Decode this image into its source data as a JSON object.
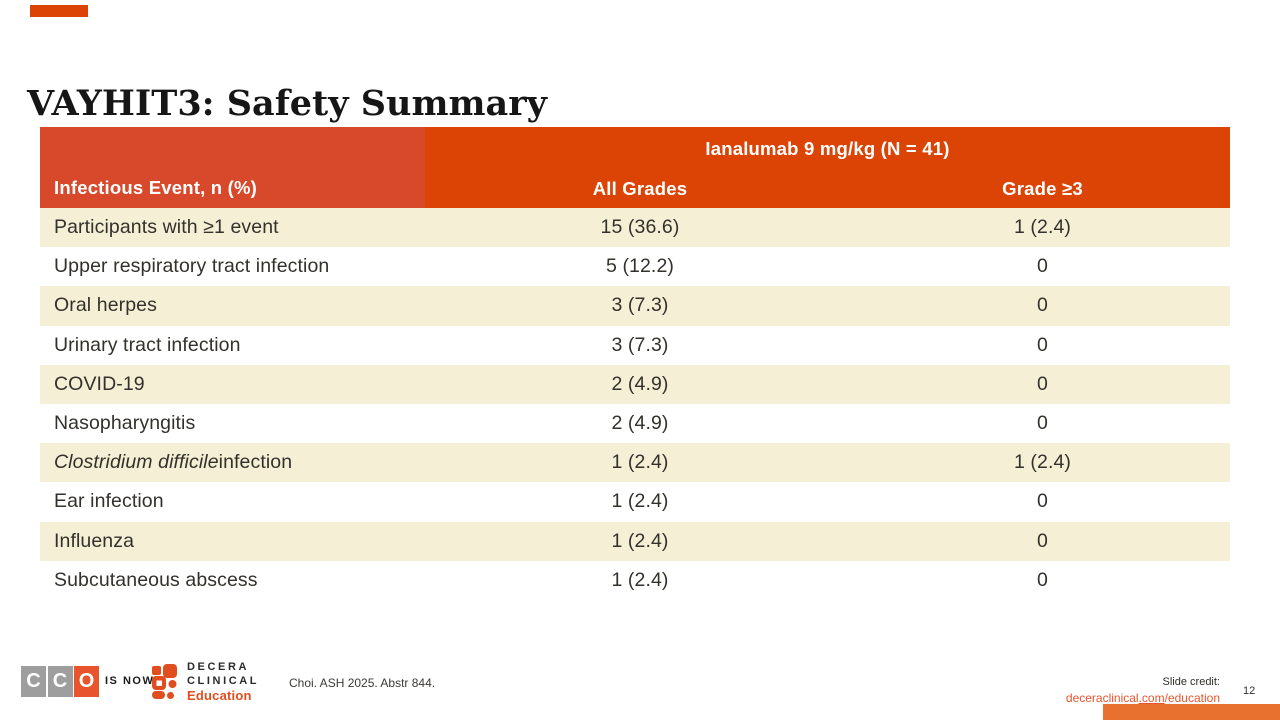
{
  "slide": {
    "title": "VAYHIT3: Safety Summary",
    "page_number": "12"
  },
  "table": {
    "row_header": "Infectious Event, n (%)",
    "span_header": "Ianalumab 9 mg/kg (N = 41)",
    "sub_headers": {
      "all_grades": "All Grades",
      "grade_ge3": "Grade ≥3"
    },
    "rows": [
      {
        "event": [
          {
            "t": "Participants with ≥1 event",
            "i": false
          }
        ],
        "all_grades": "15 (36.6)",
        "grade_ge3": "1 (2.4)"
      },
      {
        "event": [
          {
            "t": "Upper respiratory tract infection",
            "i": false
          }
        ],
        "all_grades": "5 (12.2)",
        "grade_ge3": "0"
      },
      {
        "event": [
          {
            "t": "Oral herpes",
            "i": false
          }
        ],
        "all_grades": "3 (7.3)",
        "grade_ge3": "0"
      },
      {
        "event": [
          {
            "t": "Urinary tract infection",
            "i": false
          }
        ],
        "all_grades": "3 (7.3)",
        "grade_ge3": "0"
      },
      {
        "event": [
          {
            "t": "COVID-19",
            "i": false
          }
        ],
        "all_grades": "2 (4.9)",
        "grade_ge3": "0"
      },
      {
        "event": [
          {
            "t": "Nasopharyngitis",
            "i": false
          }
        ],
        "all_grades": "2 (4.9)",
        "grade_ge3": "0"
      },
      {
        "event": [
          {
            "t": "Clostridium difficile",
            "i": true
          },
          {
            "t": " infection",
            "i": false
          }
        ],
        "all_grades": "1 (2.4)",
        "grade_ge3": "1 (2.4)"
      },
      {
        "event": [
          {
            "t": "Ear infection",
            "i": false
          }
        ],
        "all_grades": "1 (2.4)",
        "grade_ge3": "0"
      },
      {
        "event": [
          {
            "t": "Influenza",
            "i": false
          }
        ],
        "all_grades": "1 (2.4)",
        "grade_ge3": "0"
      },
      {
        "event": [
          {
            "t": "Subcutaneous abscess",
            "i": false
          }
        ],
        "all_grades": "1 (2.4)",
        "grade_ge3": "0"
      }
    ]
  },
  "footer": {
    "cco_letters": [
      "C",
      "C",
      "O"
    ],
    "is_now": "IS NOW",
    "brand_line1": "DECERA",
    "brand_line2": "CLINICAL",
    "brand_line3": "Education",
    "citation": "Choi. ASH 2025. Abstr 844.",
    "slide_credit_label": "Slide credit:",
    "link_part1": "deceraclinical",
    "link_part2": ".com",
    "link_part3": "/education"
  },
  "colors": {
    "header_left": "#D7492A",
    "header_right": "#DC4405",
    "row_stripe": "#F5EFD6",
    "accent_orange": "#E8542D",
    "education_orange": "#E04E1F",
    "logo_gray": "#9E9E9E",
    "bottom_bar": "#E8712F",
    "body_text": "#33312B"
  }
}
